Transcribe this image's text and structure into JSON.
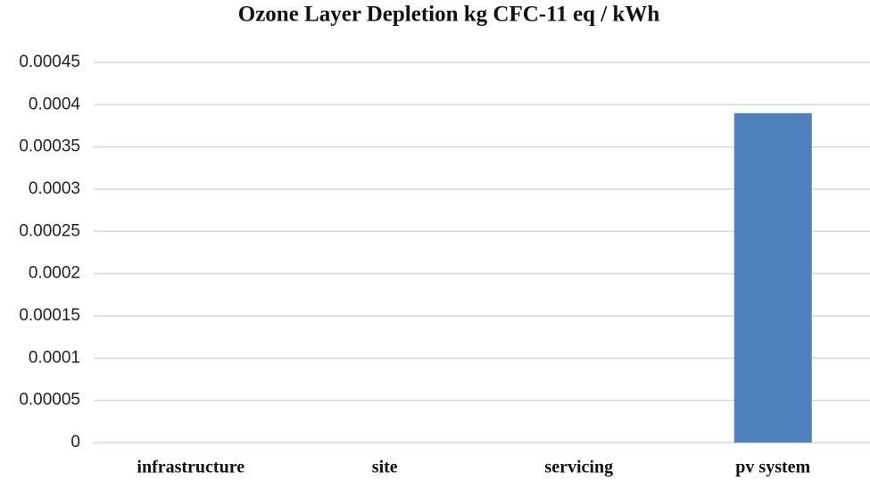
{
  "chart_data": {
    "type": "bar",
    "title": "Ozone Layer Depletion kg CFC-11 eq / kWh",
    "categories": [
      "infrastructure",
      "site",
      "servicing",
      "pv system"
    ],
    "values": [
      0,
      0,
      0,
      0.00039
    ],
    "color": "#4f81bd",
    "ylim": [
      0,
      0.00045
    ],
    "yticks": [
      0,
      5e-05,
      0.0001,
      0.00015,
      0.0002,
      0.00025,
      0.0003,
      0.00035,
      0.0004,
      0.00045
    ],
    "grid": true
  }
}
